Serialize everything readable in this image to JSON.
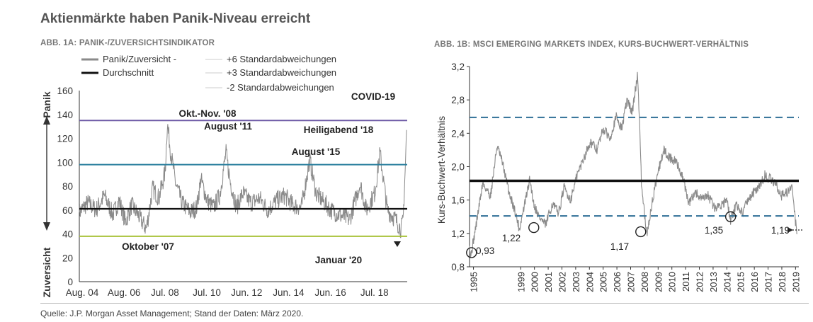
{
  "title": "Aktienmärkte haben Panik-Niveau erreicht",
  "source": "Quelle: J.P. Morgan Asset Management; Stand der Daten: März 2020.",
  "colors": {
    "series": "#8a8a8a",
    "average": "#111111",
    "sd6": "#6e5aa6",
    "sd3": "#2a7f9e",
    "sdm2": "#a8c23a",
    "pb_dash": "#2f6f96"
  },
  "chart_data": [
    {
      "type": "line",
      "title": "ABB. 1A: PANIK-/ZUVERSICHTSINDIKATOR",
      "ylabel_top": "Panik",
      "ylabel_bottom": "Zuversicht",
      "ylim": [
        0,
        160
      ],
      "yticks": [
        "0",
        "20",
        "40",
        "60",
        "80",
        "100",
        "120",
        "140",
        "160"
      ],
      "xticks": [
        "Aug. 04",
        "Aug. 06",
        "Jul. 08",
        "Jul. 10",
        "Jun. 12",
        "Jun. 14",
        "Jun. 16",
        "Jul. 18"
      ],
      "xlim": [
        2004.6,
        2020.25
      ],
      "legend": [
        {
          "label": "Panik/Zuversicht -",
          "key": "series"
        },
        {
          "label": "Durchschnitt",
          "key": "average"
        },
        {
          "label": "+6 Standardabweichungen",
          "key": "sd6"
        },
        {
          "label": "+3 Standardabweichungen",
          "key": "sd3"
        },
        {
          "label": "-2 Standardabweichungen",
          "key": "sdm2"
        }
      ],
      "reference_lines": [
        {
          "name": "+6 Standardabweichungen",
          "value": 135,
          "key": "sd6"
        },
        {
          "name": "+3 Standardabweichungen",
          "value": 98,
          "key": "sd3"
        },
        {
          "name": "Durchschnitt",
          "value": 61,
          "key": "average"
        },
        {
          "name": "-2 Standardabweichungen",
          "value": 38,
          "key": "sdm2"
        }
      ],
      "annotations": [
        {
          "text": "Okt.-Nov. '08",
          "x": 2008.8,
          "y": 142
        },
        {
          "text": "August '11",
          "x": 2011.6,
          "y": 128
        },
        {
          "text": "August '15",
          "x": 2015.6,
          "y": 108
        },
        {
          "text": "Heiligabend '18",
          "x": 2018.95,
          "y": 124
        },
        {
          "text": "COVID-19",
          "x": 2019.8,
          "y": 148
        },
        {
          "text": "Oktober '07",
          "x": 2007.8,
          "y": 29
        },
        {
          "text": "Januar '20",
          "x": 2019.2,
          "y": 16
        }
      ],
      "series": [
        {
          "name": "Panik/Zuversicht -",
          "x": [
            2004.6,
            2005.0,
            2005.4,
            2005.8,
            2006.2,
            2006.5,
            2006.8,
            2007.1,
            2007.4,
            2007.8,
            2008.1,
            2008.4,
            2008.7,
            2008.8,
            2008.95,
            2009.2,
            2009.5,
            2009.9,
            2010.2,
            2010.4,
            2010.7,
            2011.0,
            2011.3,
            2011.6,
            2011.8,
            2012.1,
            2012.4,
            2012.8,
            2013.2,
            2013.6,
            2014.0,
            2014.4,
            2014.8,
            2015.2,
            2015.6,
            2015.9,
            2016.2,
            2016.6,
            2017.0,
            2017.5,
            2018.0,
            2018.3,
            2018.7,
            2018.95,
            2019.3,
            2019.7,
            2019.95,
            2020.05,
            2020.15,
            2020.22
          ],
          "values": [
            58,
            66,
            60,
            72,
            56,
            68,
            50,
            64,
            56,
            44,
            78,
            70,
            92,
            133,
            110,
            82,
            66,
            58,
            62,
            86,
            68,
            62,
            72,
            108,
            84,
            62,
            74,
            66,
            70,
            60,
            68,
            72,
            64,
            62,
            102,
            74,
            68,
            60,
            56,
            52,
            82,
            60,
            74,
            108,
            60,
            52,
            44,
            50,
            92,
            127
          ]
        }
      ]
    },
    {
      "type": "line",
      "title": "ABB. 1B: MSCI EMERGING MARKETS INDEX, KURS-BUCHWERT-VERHÄLTNIS",
      "ylabel": "Kurs-Buchwert-Verhältnis",
      "ylim": [
        0.8,
        3.2
      ],
      "yticks": [
        "0,8",
        "1,2",
        "1,6",
        "2,0",
        "2,4",
        "2,8",
        "3,2"
      ],
      "xticks": [
        "1995",
        "1999",
        "2000",
        "2001",
        "2002",
        "2003",
        "2004",
        "2005",
        "2006",
        "2007",
        "2008",
        "2009",
        "2010",
        "2011",
        "2012",
        "2013",
        "2014",
        "2015",
        "2016",
        "2017",
        "2018",
        "2019"
      ],
      "reference_lines": [
        {
          "name": "Durchschnitt",
          "value": 1.83,
          "key": "average"
        },
        {
          "name": "+2 SD",
          "value": 2.59,
          "key": "pb_dash"
        },
        {
          "name": "-2 SD",
          "value": 1.41,
          "key": "pb_dash"
        }
      ],
      "annotations": [
        {
          "text": "0,93",
          "x": 1995.1,
          "y": 0.93
        },
        {
          "text": "1,22",
          "x": 1999.9,
          "y": 1.22
        },
        {
          "text": "1,17",
          "x": 2008.0,
          "y": 1.17
        },
        {
          "text": "1,35",
          "x": 2014.9,
          "y": 1.35
        },
        {
          "text": "1,19",
          "x": 2019.8,
          "y": 1.19
        }
      ],
      "series": [
        {
          "name": "Kurs-Buchwert-Verhältnis",
          "x": [
            1995.0,
            1995.1,
            1995.5,
            1996.0,
            1996.6,
            1997.1,
            1997.5,
            1998.0,
            1998.5,
            1998.8,
            1999.2,
            1999.6,
            1999.9,
            2000.3,
            2000.8,
            2001.3,
            2001.8,
            2002.2,
            2002.7,
            2003.2,
            2003.7,
            2004.2,
            2004.7,
            2005.2,
            2005.7,
            2006.2,
            2006.6,
            2007.0,
            2007.4,
            2007.8,
            2007.95,
            2008.1,
            2008.5,
            2008.9,
            2009.3,
            2009.8,
            2010.3,
            2010.8,
            2011.3,
            2011.7,
            2012.2,
            2012.7,
            2013.2,
            2013.7,
            2014.2,
            2014.6,
            2014.9,
            2015.3,
            2015.8,
            2016.2,
            2016.7,
            2017.1,
            2017.5,
            2017.9,
            2018.3,
            2018.8,
            2019.2,
            2019.6,
            2019.8,
            2019.95
          ],
          "values": [
            1.05,
            0.93,
            1.3,
            1.8,
            1.65,
            2.25,
            2.05,
            1.7,
            1.45,
            1.25,
            1.55,
            1.85,
            1.55,
            1.4,
            1.3,
            1.55,
            1.45,
            1.75,
            1.6,
            1.9,
            2.1,
            2.3,
            2.2,
            2.45,
            2.35,
            2.6,
            2.45,
            2.8,
            2.65,
            3.1,
            2.6,
            1.8,
            1.17,
            1.55,
            1.9,
            2.2,
            2.1,
            2.05,
            1.85,
            1.55,
            1.7,
            1.6,
            1.65,
            1.5,
            1.55,
            1.6,
            1.35,
            1.55,
            1.45,
            1.6,
            1.7,
            1.75,
            1.9,
            1.85,
            1.8,
            1.65,
            1.7,
            1.75,
            1.4,
            1.19
          ]
        }
      ]
    }
  ]
}
